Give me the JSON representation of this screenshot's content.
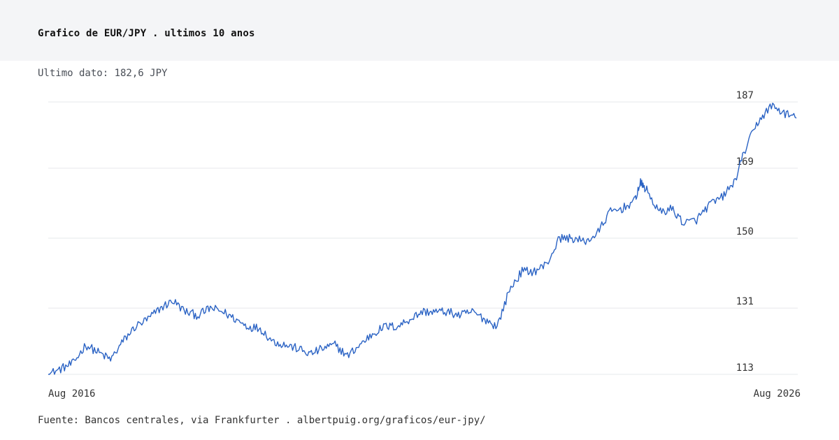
{
  "header": {
    "title": "Grafico de EUR/JPY . ultimos 10 anos"
  },
  "subtitle": "Ultimo dato: 182,6 JPY",
  "footer": {
    "source": "Fuente: Bancos centrales, via Frankfurter . albertpuig.org/graficos/eur-jpy/"
  },
  "colors": {
    "line": "#2b63c4",
    "grid": "#e6e8eb",
    "header_bg": "#f4f5f7"
  },
  "chart_data": {
    "type": "line",
    "title": "Grafico de EUR/JPY . ultimos 10 anos",
    "xlabel": "",
    "ylabel": "",
    "x_tick_labels": [
      "Aug 2016",
      "Aug 2026"
    ],
    "y_ticks": [
      113,
      131,
      150,
      169,
      187
    ],
    "ylim": [
      113,
      187
    ],
    "grid": true,
    "legend": "none",
    "series": [
      {
        "x": [
          "2016-08",
          "2016-10",
          "2016-12",
          "2017-02",
          "2017-04",
          "2017-06",
          "2017-08",
          "2017-10",
          "2017-12",
          "2018-02",
          "2018-04",
          "2018-06",
          "2018-08",
          "2018-10",
          "2018-12",
          "2019-02",
          "2019-04",
          "2019-06",
          "2019-08",
          "2019-10",
          "2019-12",
          "2020-02",
          "2020-04",
          "2020-06",
          "2020-08",
          "2020-10",
          "2020-12",
          "2021-02",
          "2021-04",
          "2021-06",
          "2021-08",
          "2021-10",
          "2021-12",
          "2022-02",
          "2022-04",
          "2022-06",
          "2022-08",
          "2022-10",
          "2022-12",
          "2023-02",
          "2023-04",
          "2023-06",
          "2023-08",
          "2023-10",
          "2023-12",
          "2024-02",
          "2024-04",
          "2024-06",
          "2024-07",
          "2024-08",
          "2024-10",
          "2024-12",
          "2025-02",
          "2025-04",
          "2025-06",
          "2025-08",
          "2025-10",
          "2025-12",
          "2026-02",
          "2026-04",
          "2026-06",
          "2026-08"
        ],
        "values": [
          113,
          114.5,
          116,
          121,
          119,
          117,
          122,
          126,
          128,
          131,
          133,
          130,
          129,
          131,
          130,
          128,
          126,
          125.5,
          122,
          121,
          120,
          118.5,
          120,
          121,
          118,
          121,
          124,
          126,
          126,
          128,
          130,
          130,
          130,
          129,
          130,
          128,
          126,
          136,
          141,
          141,
          143,
          150,
          150,
          149,
          151,
          157,
          158,
          160,
          165,
          163,
          157,
          158,
          154,
          155,
          159,
          161,
          165,
          175,
          182,
          186,
          184,
          182.6
        ]
      }
    ]
  }
}
